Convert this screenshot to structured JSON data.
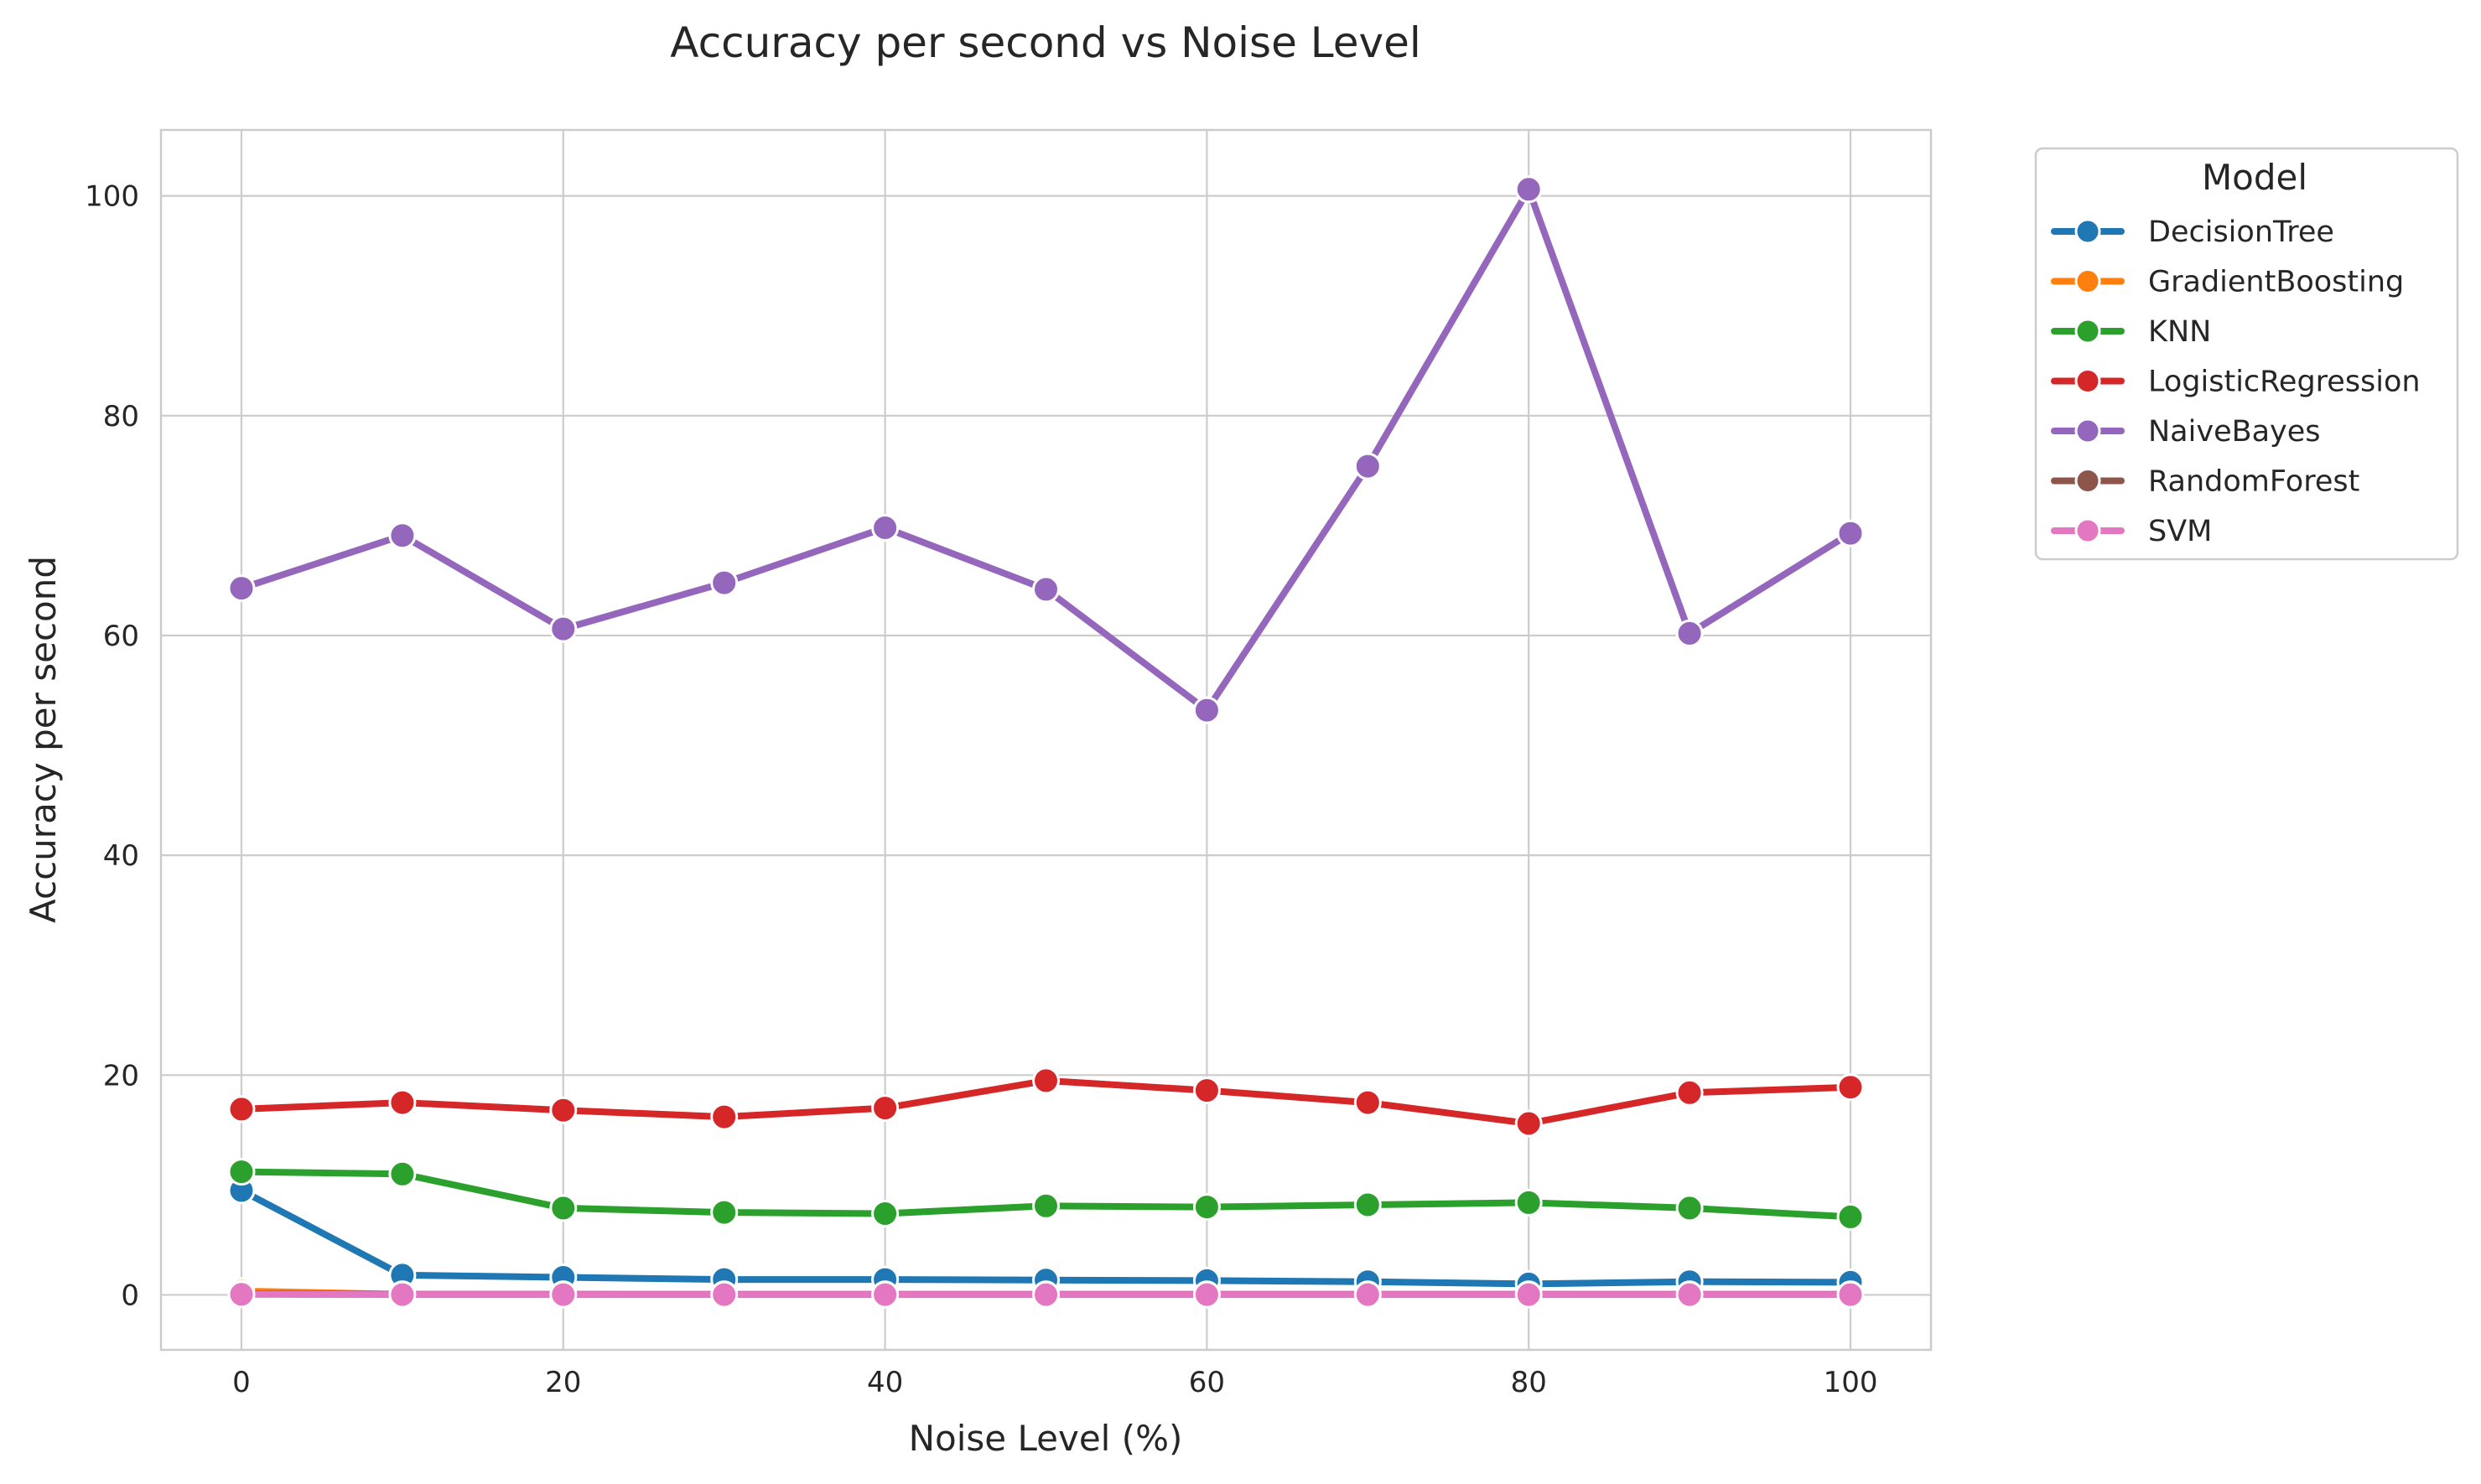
{
  "chart_data": {
    "type": "line",
    "title": "Accuracy per second vs Noise Level",
    "xlabel": "Noise Level (%)",
    "ylabel": "Accuracy per second",
    "x": [
      0,
      10,
      20,
      30,
      40,
      50,
      60,
      70,
      80,
      90,
      100
    ],
    "xlim": [
      -5,
      105
    ],
    "ylim": [
      -5,
      106
    ],
    "xticks": [
      0,
      20,
      40,
      60,
      80,
      100
    ],
    "yticks": [
      0,
      20,
      40,
      60,
      80,
      100
    ],
    "grid": true,
    "legend": {
      "title": "Model",
      "placement": "outside-top-right"
    },
    "series": [
      {
        "name": "DecisionTree",
        "color": "#1f77b4",
        "values": [
          9.5,
          1.8,
          1.6,
          1.4,
          1.4,
          1.35,
          1.3,
          1.2,
          1.0,
          1.2,
          1.15
        ]
      },
      {
        "name": "GradientBoosting",
        "color": "#ff7f0e",
        "values": [
          0.35,
          0.05,
          0.05,
          0.04,
          0.04,
          0.04,
          0.04,
          0.04,
          0.04,
          0.04,
          0.04
        ]
      },
      {
        "name": "KNN",
        "color": "#2ca02c",
        "values": [
          11.2,
          11.0,
          7.9,
          7.5,
          7.4,
          8.1,
          8.0,
          8.2,
          8.4,
          7.9,
          7.1
        ]
      },
      {
        "name": "LogisticRegression",
        "color": "#d62728",
        "values": [
          16.9,
          17.5,
          16.8,
          16.2,
          17.0,
          19.5,
          18.6,
          17.5,
          15.6,
          18.4,
          18.9
        ]
      },
      {
        "name": "NaiveBayes",
        "color": "#9467bd",
        "values": [
          64.3,
          69.1,
          60.6,
          64.8,
          69.8,
          64.2,
          53.2,
          75.4,
          100.6,
          60.2,
          69.3
        ]
      },
      {
        "name": "RandomForest",
        "color": "#8c564b",
        "values": [
          0.1,
          0.05,
          0.05,
          0.05,
          0.05,
          0.05,
          0.05,
          0.05,
          0.05,
          0.05,
          0.05
        ]
      },
      {
        "name": "SVM",
        "color": "#e377c2",
        "values": [
          0.05,
          0.03,
          0.03,
          0.03,
          0.03,
          0.03,
          0.03,
          0.03,
          0.03,
          0.03,
          0.03
        ]
      }
    ]
  }
}
